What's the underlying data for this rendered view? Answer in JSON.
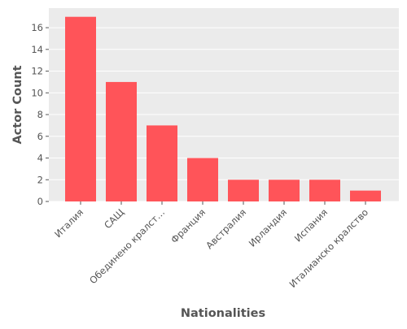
{
  "chart_data": {
    "type": "bar",
    "categories": [
      "Италия",
      "САЩ",
      "Обединено кралст…",
      "Франция",
      "Австралия",
      "Ирландия",
      "Испания",
      "Италианско кралство"
    ],
    "values": [
      17,
      11,
      7,
      4,
      2,
      2,
      2,
      1
    ],
    "xlabel": "Nationalities",
    "ylabel": "Actor Count",
    "ylim": [
      0,
      17.8
    ],
    "yticks": [
      0,
      2,
      4,
      6,
      8,
      10,
      12,
      14,
      16
    ],
    "grid": true,
    "bar_color": "#ff5459",
    "background_color": "#ebebeb",
    "grid_color": "#ffffff"
  }
}
